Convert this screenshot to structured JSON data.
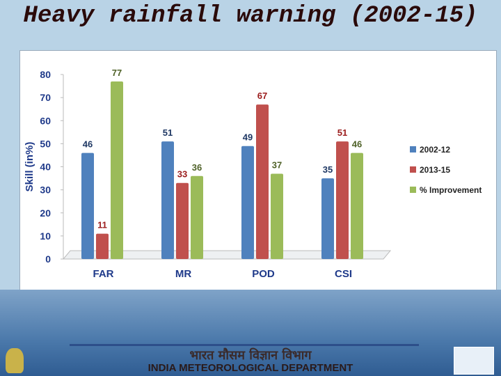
{
  "title": "Heavy rainfall warning (2002-15)",
  "chart_data": {
    "type": "bar",
    "y_label": "Skill (in%)",
    "categories": [
      "FAR",
      "MR",
      "POD",
      "CSI"
    ],
    "series": [
      {
        "name": "2002-12",
        "color": "#4f81bd",
        "values": [
          46,
          51,
          49,
          35
        ]
      },
      {
        "name": "2013-15",
        "color": "#c0504d",
        "values": [
          11,
          33,
          67,
          51
        ]
      },
      {
        "name": "% Improvement",
        "color": "#9bbb59",
        "values": [
          77,
          36,
          37,
          46
        ]
      }
    ],
    "ylim": [
      0,
      80
    ],
    "yticks": [
      0,
      10,
      20,
      30,
      40,
      50,
      60,
      70,
      80
    ],
    "legend": "right"
  },
  "footer": {
    "hindi": "भारत मौसम विज्ञान विभाग",
    "english": "INDIA METEOROLOGICAL DEPARTMENT"
  }
}
